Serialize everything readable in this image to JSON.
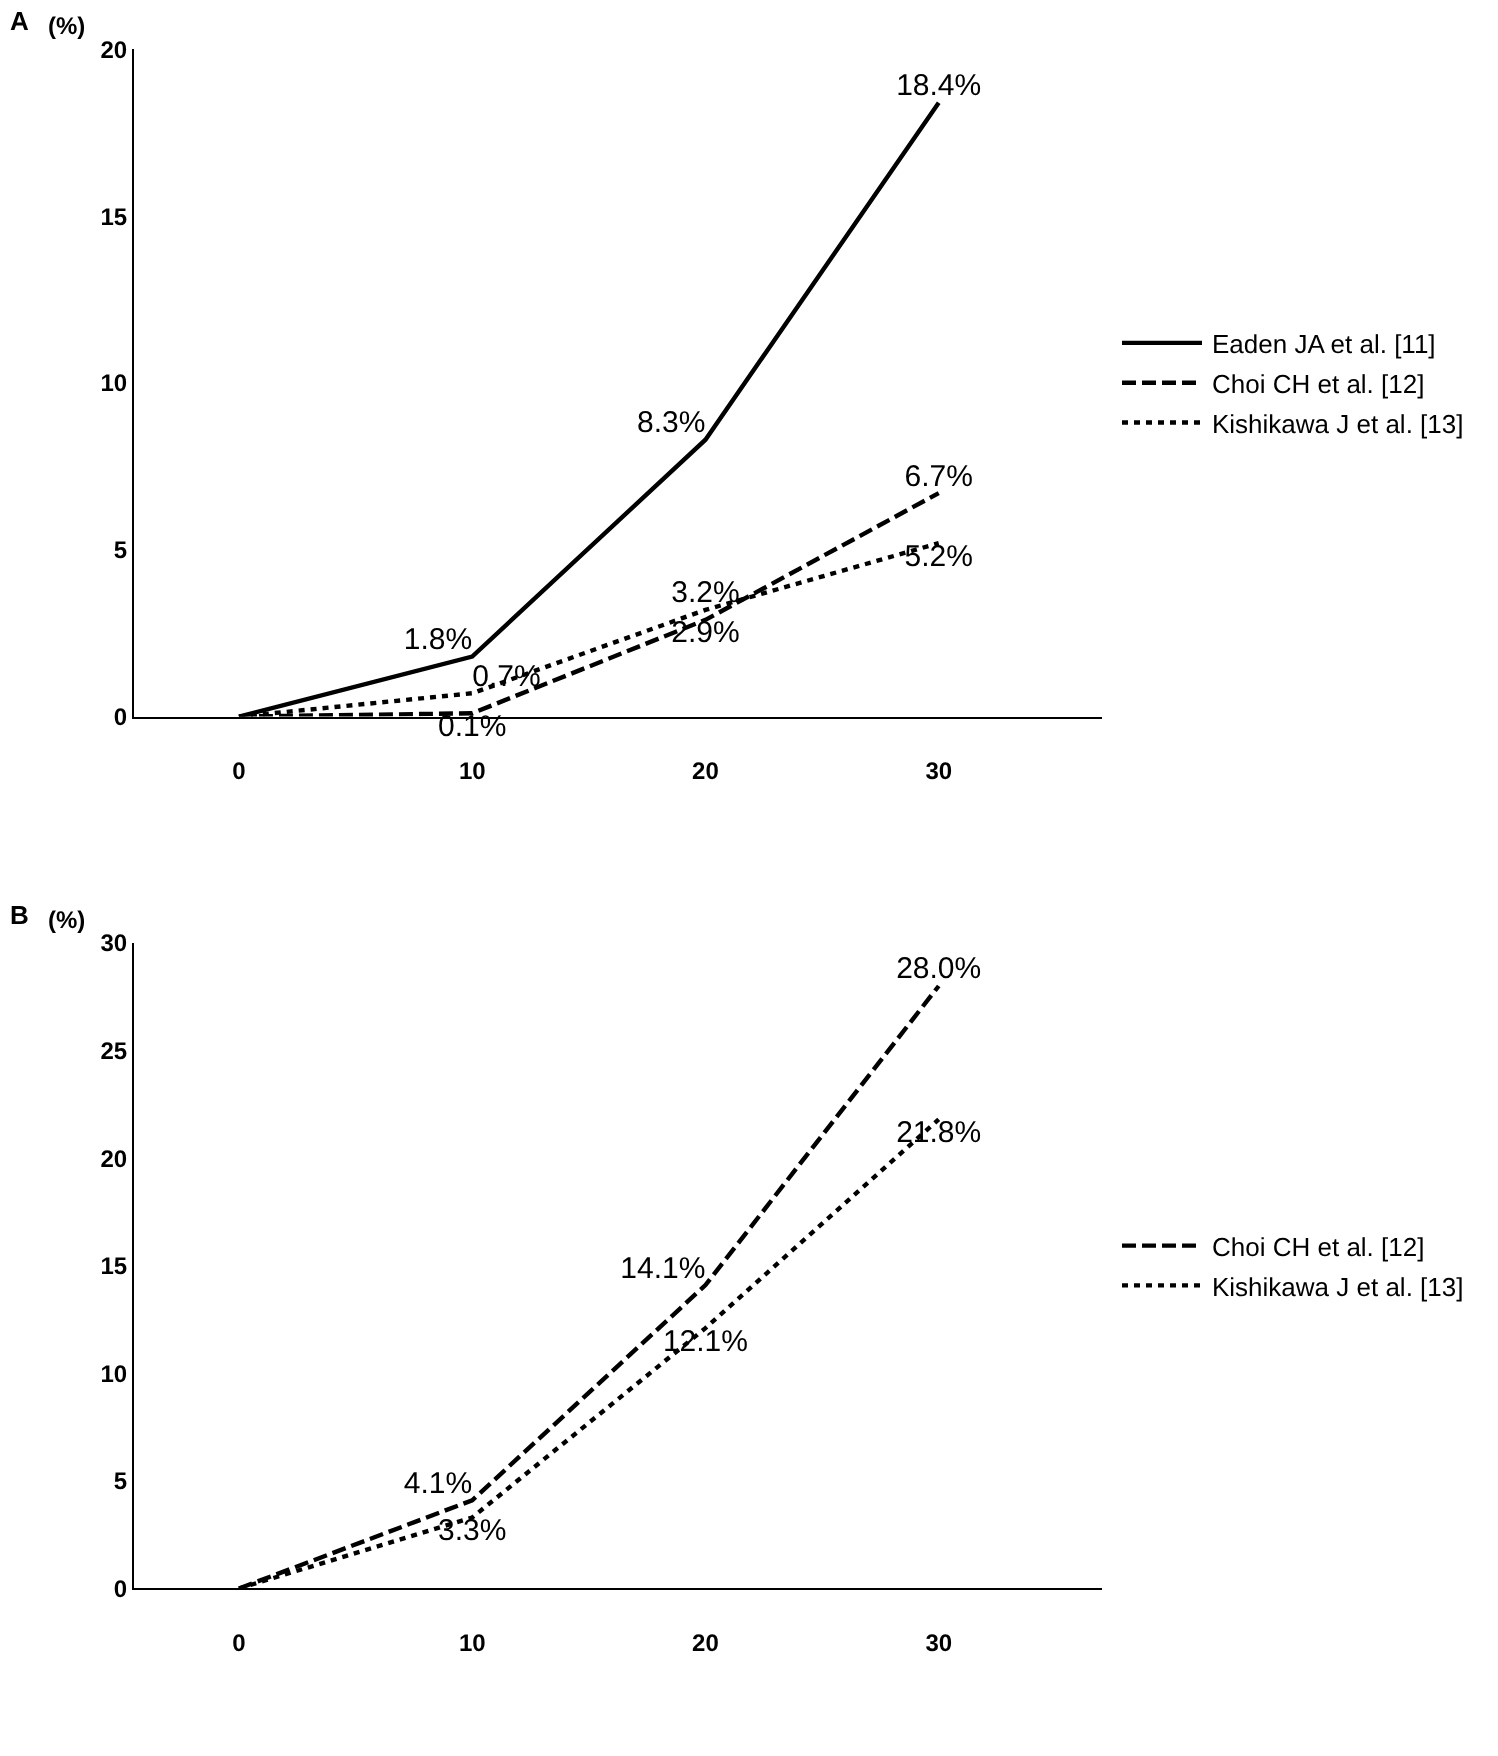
{
  "chart_data": [
    {
      "type": "line",
      "title": "A",
      "ylabel": "(%)",
      "categories": [
        "0",
        "10",
        "20",
        "30"
      ],
      "ylim": [
        0,
        20
      ],
      "yticks": [
        0,
        5,
        10,
        15,
        20
      ],
      "grid": false,
      "legend": "right",
      "marker": "none",
      "series": [
        {
          "name": "Eaden JA et al. [11]",
          "color": "#000000",
          "line_style": "solid",
          "values": [
            0,
            1.8,
            8.3,
            18.4
          ],
          "value_labels": [
            null,
            "1.8%",
            "8.3%",
            "18.4%"
          ]
        },
        {
          "name": "Choi CH et al. [12]",
          "color": "#000000",
          "line_style": "dashed",
          "values": [
            0,
            0.1,
            2.9,
            6.7
          ],
          "value_labels": [
            null,
            "0.1%",
            "2.9%",
            "6.7%"
          ]
        },
        {
          "name": "Kishikawa J et al. [13]",
          "color": "#000000",
          "line_style": "dotted",
          "values": [
            0,
            0.7,
            3.2,
            5.2
          ],
          "value_labels": [
            null,
            "0.7%",
            "3.2%",
            "5.2%"
          ]
        }
      ]
    },
    {
      "type": "line",
      "title": "B",
      "ylabel": "(%)",
      "categories": [
        "0",
        "10",
        "20",
        "30"
      ],
      "ylim": [
        0,
        30
      ],
      "yticks": [
        0,
        5,
        10,
        15,
        20,
        25,
        30
      ],
      "grid": false,
      "legend": "right",
      "marker": "none",
      "series": [
        {
          "name": "Choi CH et al. [12]",
          "color": "#000000",
          "line_style": "dashed",
          "values": [
            0,
            4.1,
            14.1,
            28.0
          ],
          "value_labels": [
            null,
            "4.1%",
            "14.1%",
            "28.0%"
          ]
        },
        {
          "name": "Kishikawa J et al. [13]",
          "color": "#000000",
          "line_style": "dotted",
          "values": [
            0,
            3.3,
            12.1,
            21.8
          ],
          "value_labels": [
            null,
            "3.3%",
            "12.1%",
            "21.8%"
          ]
        }
      ]
    }
  ]
}
